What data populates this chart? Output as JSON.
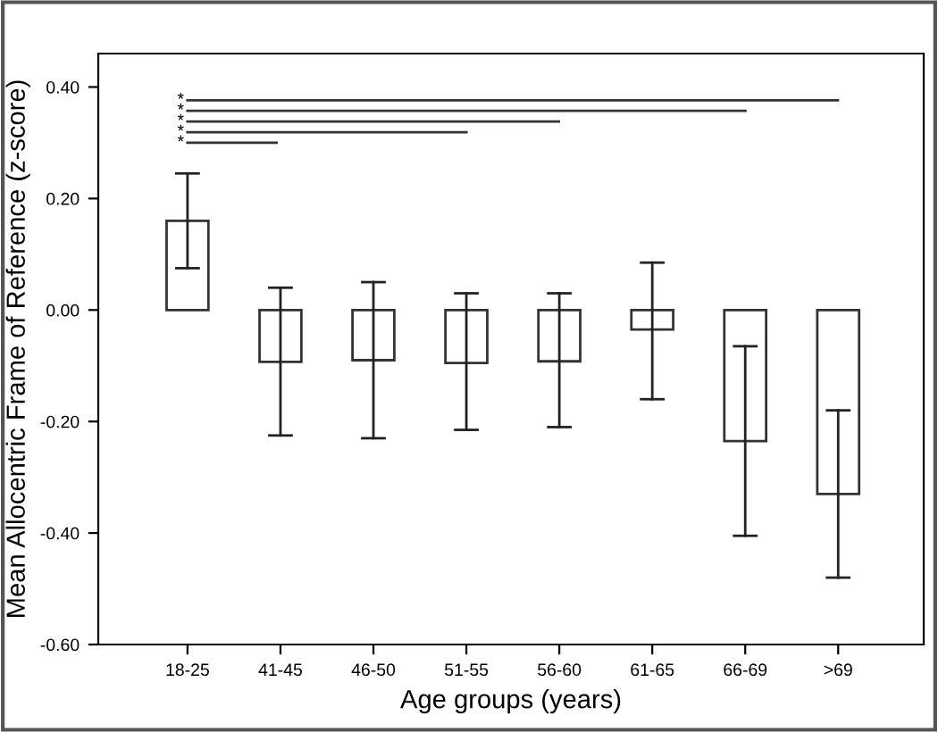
{
  "chart_data": {
    "type": "bar",
    "xlabel": "Age groups (years)",
    "ylabel": "Mean Allocentric Frame of Reference (z-score)",
    "categories": [
      "18-25",
      "41-45",
      "46-50",
      "51-55",
      "56-60",
      "61-65",
      "66-69",
      ">69"
    ],
    "values": [
      0.16,
      -0.093,
      -0.09,
      -0.095,
      -0.092,
      -0.035,
      -0.235,
      -0.33
    ],
    "errors": [
      [
        0.075,
        0.245
      ],
      [
        -0.225,
        0.04
      ],
      [
        -0.23,
        0.05
      ],
      [
        -0.215,
        0.03
      ],
      [
        -0.21,
        0.03
      ],
      [
        -0.16,
        0.085
      ],
      [
        -0.405,
        -0.065
      ],
      [
        -0.48,
        -0.18
      ]
    ],
    "color": "#ffffff",
    "ylim": [
      -0.6,
      0.46
    ],
    "yticks": [
      {
        "value": -0.6,
        "label": "-0.60"
      },
      {
        "value": -0.4,
        "label": "-0.40"
      },
      {
        "value": -0.2,
        "label": "-0.20"
      },
      {
        "value": 0.0,
        "label": "0.00"
      },
      {
        "value": 0.2,
        "label": "0.20"
      },
      {
        "value": 0.4,
        "label": "0.40"
      }
    ],
    "grid": false,
    "annotations": [
      "*",
      "*",
      "*",
      "*",
      "*"
    ]
  }
}
